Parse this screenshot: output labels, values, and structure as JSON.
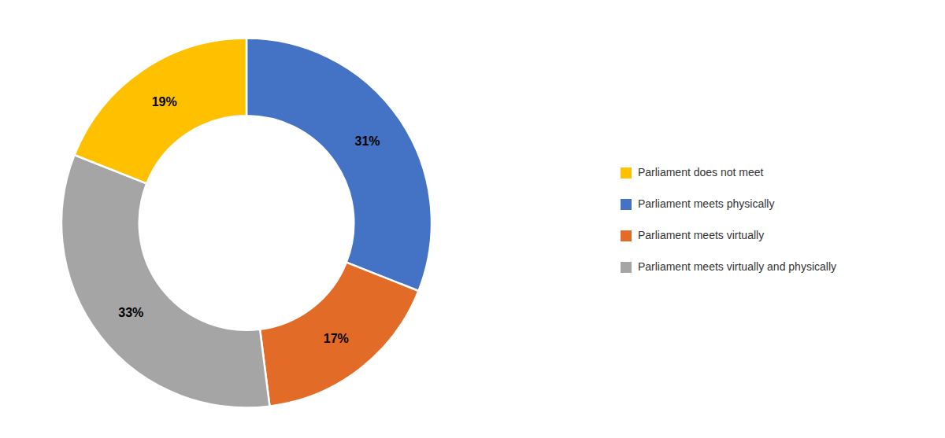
{
  "chart_data": {
    "type": "pie",
    "categories": [
      "Parliament meets physically",
      "Parliament meets virtually",
      "Parliament meets virtually and physically",
      "Parliament does not meet"
    ],
    "values": [
      31,
      17,
      33,
      19
    ],
    "value_labels": [
      "31%",
      "17%",
      "33%",
      "19%"
    ],
    "colors": [
      "#4472C4",
      "#E36B28",
      "#A5A5A5",
      "#FFC000"
    ],
    "data_labels": true,
    "legend": "right"
  }
}
